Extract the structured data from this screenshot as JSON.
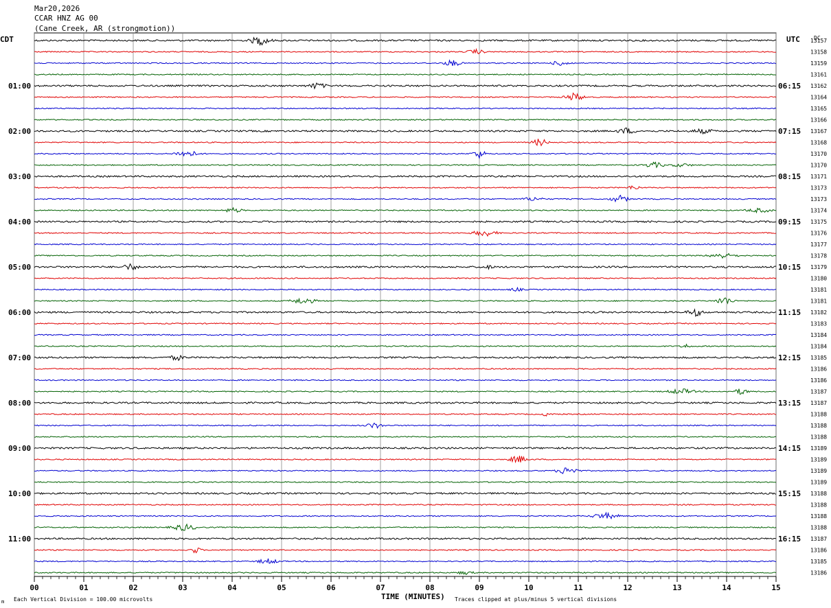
{
  "header": {
    "date": "Mar20,2026",
    "station": "CCAR HNZ AG 00",
    "location": "(Cane Creek, AR (strongmotion))"
  },
  "axes": {
    "left_tz": "CDT",
    "right_tz": "UTC",
    "dc_label": "DC",
    "xlabel": "TIME (MINUTES)",
    "footer_left": "Each Vertical Division =  100.00 microvolts",
    "footer_right": "Traces clipped at plus/minus 5 vertical divisions",
    "corner_mark": "m"
  },
  "chart_data": {
    "type": "line",
    "title": "CCAR HNZ AG 00",
    "xlabel": "TIME (MINUTES)",
    "xlim": [
      0,
      15
    ],
    "x_ticks": [
      "00",
      "01",
      "02",
      "03",
      "04",
      "05",
      "06",
      "07",
      "08",
      "09",
      "10",
      "11",
      "12",
      "13",
      "14",
      "15"
    ],
    "grid": true,
    "trace_colors": [
      "#000000",
      "#e00000",
      "#0000d0",
      "#006000"
    ],
    "left_hour_labels": [
      "01:00",
      "02:00",
      "03:00",
      "04:00",
      "05:00",
      "06:00",
      "07:00",
      "08:00",
      "09:00",
      "10:00",
      "11:00"
    ],
    "right_hour_labels": [
      "06:15",
      "07:15",
      "08:15",
      "09:15",
      "10:15",
      "11:15",
      "12:15",
      "13:15",
      "14:15",
      "15:15",
      "16:15"
    ],
    "dc_offsets": [
      13157,
      13158,
      13159,
      13161,
      13162,
      13164,
      13165,
      13166,
      13167,
      13168,
      13170,
      13170,
      13171,
      13173,
      13173,
      13174,
      13175,
      13176,
      13177,
      13178,
      13179,
      13180,
      13181,
      13181,
      13182,
      13183,
      13184,
      13184,
      13185,
      13186,
      13186,
      13187,
      13187,
      13188,
      13188,
      13188,
      13189,
      13189,
      13189,
      13189,
      13188,
      13188,
      13188,
      13188,
      13187,
      13186,
      13185,
      13186
    ]
  }
}
